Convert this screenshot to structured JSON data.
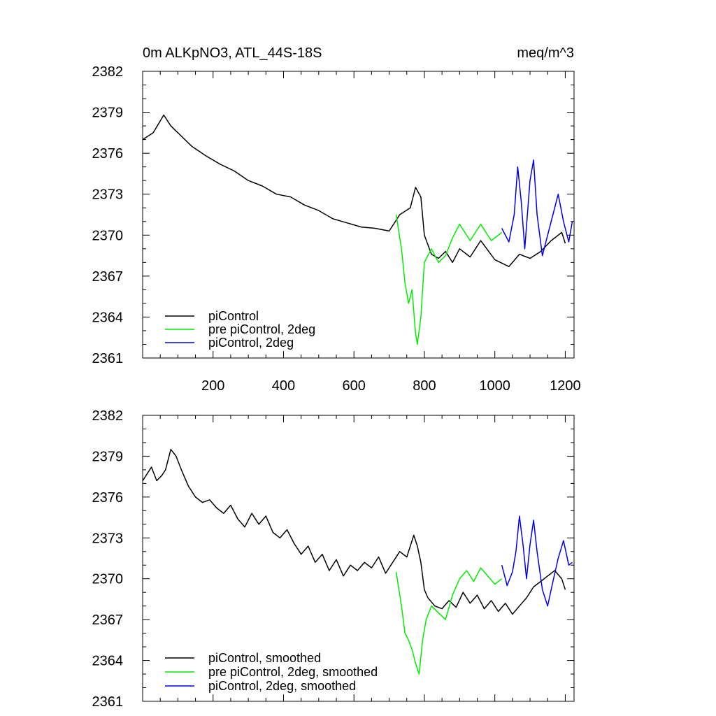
{
  "figure": {
    "title_left": "0m ALKpNO3, ATL_44S-18S",
    "title_right": "meq/m^3"
  },
  "chart_data": [
    {
      "type": "line",
      "panel": "top",
      "xlim": [
        0,
        1225
      ],
      "ylim": [
        2361,
        2382
      ],
      "x_ticks": [
        200,
        400,
        600,
        800,
        1000,
        1200
      ],
      "x_tick_labels": [
        "200",
        "400",
        "600",
        "800",
        "1000",
        "1200"
      ],
      "y_ticks": [
        2361,
        2364,
        2367,
        2370,
        2373,
        2376,
        2379,
        2382
      ],
      "y_tick_labels": [
        "2361",
        "2364",
        "2367",
        "2370",
        "2373",
        "2376",
        "2379",
        "2382"
      ],
      "legend_position": "bottom-left",
      "series": [
        {
          "name": "piControl",
          "color": "#000000",
          "x": [
            0,
            30,
            60,
            80,
            100,
            140,
            180,
            220,
            260,
            300,
            340,
            380,
            420,
            460,
            500,
            540,
            580,
            620,
            660,
            700,
            730,
            760,
            775,
            790,
            800,
            820,
            840,
            860,
            880,
            900,
            930,
            960,
            1000,
            1040,
            1070,
            1100,
            1130,
            1160,
            1190,
            1200
          ],
          "values": [
            2377.0,
            2377.5,
            2378.8,
            2378.0,
            2377.5,
            2376.5,
            2375.8,
            2375.2,
            2374.7,
            2374.0,
            2373.6,
            2373.0,
            2372.8,
            2372.2,
            2371.8,
            2371.2,
            2370.9,
            2370.6,
            2370.5,
            2370.3,
            2371.5,
            2372.0,
            2373.5,
            2372.8,
            2370.0,
            2368.6,
            2368.3,
            2368.8,
            2368.0,
            2369.0,
            2368.4,
            2369.6,
            2368.2,
            2367.7,
            2368.6,
            2368.3,
            2368.8,
            2369.6,
            2370.2,
            2369.4
          ]
        },
        {
          "name": "pre piControl, 2deg",
          "color": "#00ee00",
          "x": [
            720,
            735,
            745,
            755,
            765,
            775,
            780,
            790,
            800,
            820,
            840,
            860,
            880,
            900,
            930,
            960,
            990,
            1020
          ],
          "values": [
            2371.5,
            2369.0,
            2366.5,
            2365.0,
            2366.0,
            2362.8,
            2362.0,
            2364.0,
            2368.0,
            2369.0,
            2368.0,
            2368.5,
            2369.8,
            2370.8,
            2369.6,
            2370.8,
            2369.6,
            2370.2
          ]
        },
        {
          "name": "piControl, 2deg",
          "color": "#0000ee",
          "x": [
            1020,
            1040,
            1055,
            1065,
            1075,
            1085,
            1100,
            1110,
            1120,
            1135,
            1150,
            1165,
            1180,
            1195,
            1210,
            1220
          ],
          "values": [
            2370.5,
            2369.5,
            2371.5,
            2375.0,
            2372.5,
            2369.0,
            2374.0,
            2375.5,
            2371.5,
            2368.5,
            2370.0,
            2371.5,
            2373.0,
            2371.0,
            2369.5,
            2371.0
          ]
        }
      ]
    },
    {
      "type": "line",
      "panel": "bottom",
      "xlim": [
        0,
        1225
      ],
      "ylim": [
        2361,
        2382
      ],
      "x_ticks": [
        200,
        400,
        600,
        800,
        1000,
        1200
      ],
      "y_ticks": [
        2361,
        2364,
        2367,
        2370,
        2373,
        2376,
        2379,
        2382
      ],
      "y_tick_labels": [
        "2361",
        "2364",
        "2367",
        "2370",
        "2373",
        "2376",
        "2379",
        "2382"
      ],
      "legend_position": "bottom-left",
      "series": [
        {
          "name": "piControl, smoothed",
          "color": "#000000",
          "x": [
            0,
            15,
            25,
            40,
            55,
            65,
            80,
            95,
            110,
            130,
            150,
            170,
            190,
            210,
            230,
            250,
            270,
            290,
            310,
            330,
            350,
            370,
            390,
            410,
            430,
            450,
            470,
            490,
            510,
            530,
            550,
            570,
            590,
            610,
            630,
            650,
            670,
            690,
            710,
            730,
            750,
            770,
            780,
            790,
            800,
            810,
            830,
            850,
            870,
            890,
            910,
            930,
            950,
            970,
            990,
            1010,
            1030,
            1050,
            1070,
            1090,
            1110,
            1130,
            1150,
            1170,
            1190,
            1200
          ],
          "values": [
            2377.2,
            2377.8,
            2378.2,
            2377.2,
            2377.6,
            2378.0,
            2379.5,
            2379.0,
            2378.0,
            2376.8,
            2376.0,
            2375.6,
            2375.8,
            2375.2,
            2374.8,
            2375.4,
            2374.4,
            2373.8,
            2374.8,
            2374.0,
            2374.6,
            2373.4,
            2373.0,
            2373.6,
            2372.6,
            2371.8,
            2372.4,
            2371.2,
            2371.8,
            2370.6,
            2371.4,
            2370.2,
            2371.0,
            2370.6,
            2371.2,
            2370.8,
            2371.6,
            2370.4,
            2371.2,
            2372.0,
            2371.6,
            2373.2,
            2372.4,
            2371.2,
            2369.2,
            2368.6,
            2368.0,
            2367.8,
            2368.4,
            2367.9,
            2369.0,
            2368.2,
            2368.8,
            2367.8,
            2368.4,
            2367.6,
            2368.2,
            2367.4,
            2368.0,
            2368.6,
            2369.4,
            2369.8,
            2370.2,
            2370.6,
            2370.0,
            2369.2
          ]
        },
        {
          "name": "pre piControl, 2deg, smoothed",
          "color": "#00ee00",
          "x": [
            720,
            735,
            745,
            755,
            765,
            775,
            785,
            795,
            805,
            820,
            840,
            860,
            880,
            900,
            920,
            940,
            960,
            980,
            1000,
            1020
          ],
          "values": [
            2370.5,
            2368.0,
            2366.0,
            2365.5,
            2364.8,
            2363.8,
            2363.0,
            2365.5,
            2367.0,
            2368.0,
            2367.5,
            2367.0,
            2368.8,
            2370.0,
            2370.6,
            2369.8,
            2370.8,
            2370.2,
            2369.6,
            2370.0
          ]
        },
        {
          "name": "piControl, 2deg, smoothed",
          "color": "#0000ee",
          "x": [
            1020,
            1035,
            1050,
            1060,
            1070,
            1080,
            1090,
            1100,
            1110,
            1120,
            1135,
            1150,
            1165,
            1180,
            1195,
            1210,
            1220
          ],
          "values": [
            2371.0,
            2369.5,
            2370.5,
            2372.0,
            2374.6,
            2372.5,
            2370.0,
            2372.5,
            2374.3,
            2372.0,
            2369.2,
            2368.0,
            2369.8,
            2371.5,
            2372.8,
            2371.0,
            2371.2
          ]
        }
      ]
    }
  ]
}
